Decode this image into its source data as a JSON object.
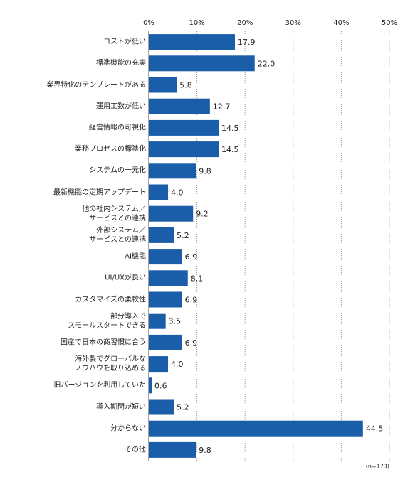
{
  "chart_data": {
    "type": "bar",
    "orientation": "horizontal",
    "categories": [
      "コストが低い",
      "標準機能の充実",
      "業界特化のテンプレートがある",
      "運用工数が低い",
      "経営情報の可視化",
      "業務プロセスの標準化",
      "システムの一元化",
      "最新機能の定期アップデート",
      "他の社内システム／\nサービスとの連携",
      "外部システム／\nサービスとの連携",
      "AI機能",
      "UI/UXが良い",
      "カスタマイズの柔軟性",
      "部分導入で\nスモールスタートできる",
      "国産で日本の商習慣に合う",
      "海外製でグローバルな\nノウハウを取り込める",
      "旧バージョンを利用していた",
      "導入期間が短い",
      "分からない",
      "その他"
    ],
    "values": [
      17.9,
      22.0,
      5.8,
      12.7,
      14.5,
      14.5,
      9.8,
      4.0,
      9.2,
      5.2,
      6.9,
      8.1,
      6.9,
      3.5,
      6.9,
      4.0,
      0.6,
      5.2,
      44.5,
      9.8
    ],
    "value_labels": [
      "17.9",
      "22.0",
      "5.8",
      "12.7",
      "14.5",
      "14.5",
      "9.8",
      "4.0",
      "9.2",
      "5.2",
      "6.9",
      "8.1",
      "6.9",
      "3.5",
      "6.9",
      "4.0",
      "0.6",
      "5.2",
      "44.5",
      "9.8"
    ],
    "color": "#1a5da8",
    "xlim": [
      0,
      50
    ],
    "xticks": [
      {
        "value": 0,
        "label": "0%"
      },
      {
        "value": 10,
        "label": "10%"
      },
      {
        "value": 20,
        "label": "20%"
      },
      {
        "value": 30,
        "label": "30%"
      },
      {
        "value": 40,
        "label": "40%"
      },
      {
        "value": 50,
        "label": "50%"
      }
    ],
    "grid": true,
    "note": "(n=173)"
  }
}
